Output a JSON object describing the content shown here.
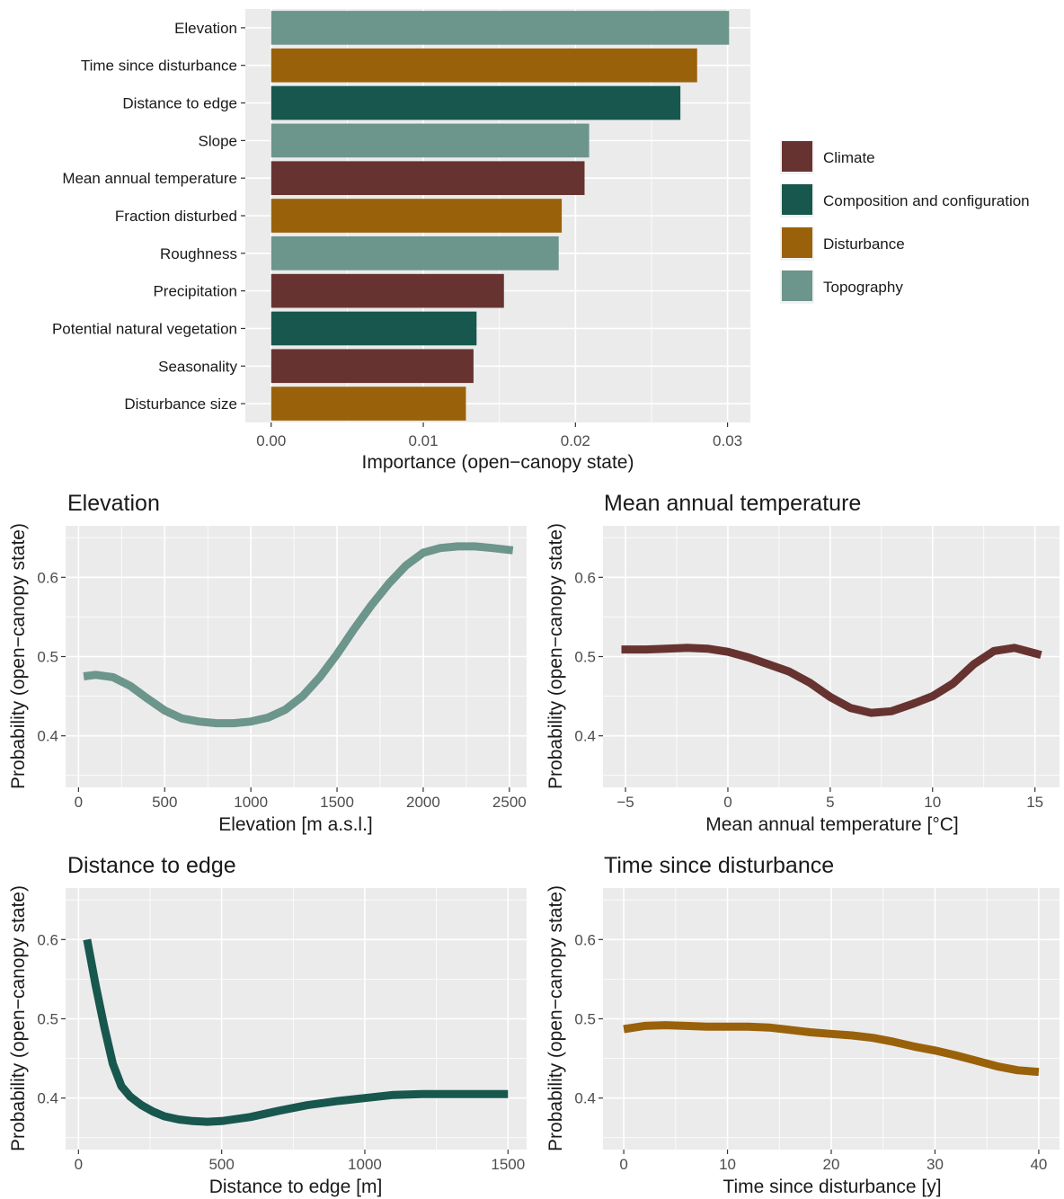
{
  "colors": {
    "Climate": "#673331",
    "Composition and configuration": "#18574d",
    "Disturbance": "#9a610b",
    "Topography": "#6c958b",
    "panel_background": "#ebebeb",
    "grid": "#ffffff"
  },
  "chart_data": [
    {
      "type": "bar",
      "orientation": "horizontal",
      "categories": [
        "Elevation",
        "Time since disturbance",
        "Distance to edge",
        "Slope",
        "Mean annual temperature",
        "Fraction disturbed",
        "Roughness",
        "Precipitation",
        "Potential natural vegetation",
        "Seasonality",
        "Disturbance size"
      ],
      "values": [
        0.0301,
        0.028,
        0.0269,
        0.0209,
        0.0206,
        0.0191,
        0.0189,
        0.0153,
        0.0135,
        0.0133,
        0.0128
      ],
      "groups": [
        "Topography",
        "Disturbance",
        "Composition and configuration",
        "Topography",
        "Climate",
        "Disturbance",
        "Topography",
        "Climate",
        "Composition and configuration",
        "Climate",
        "Disturbance"
      ],
      "xlabel": "Importance (open−canopy state)",
      "ylabel": "",
      "xlim": [
        -0.0017,
        0.0315
      ],
      "xticks": [
        0,
        0.01,
        0.02,
        0.03
      ],
      "xtick_labels": [
        "0.00",
        "0.01",
        "0.02",
        "0.03"
      ],
      "grid": true,
      "legend": {
        "position": "right",
        "entries": [
          "Climate",
          "Composition and configuration",
          "Disturbance",
          "Topography"
        ]
      }
    },
    {
      "type": "line",
      "title": "Elevation",
      "group": "Topography",
      "xlabel": "Elevation [m a.s.l.]",
      "ylabel": "Probability (open−canopy state)",
      "xlim": [
        -75,
        2600
      ],
      "ylim": [
        0.335,
        0.665
      ],
      "xticks": [
        0,
        500,
        1000,
        1500,
        2000,
        2500
      ],
      "xtick_labels": [
        "0",
        "500",
        "1000",
        "1500",
        "2000",
        "2500"
      ],
      "yticks": [
        0.4,
        0.5,
        0.6
      ],
      "ytick_labels": [
        "0.4",
        "0.5",
        "0.6"
      ],
      "grid": true,
      "x": [
        30,
        100,
        200,
        300,
        400,
        500,
        600,
        700,
        800,
        900,
        1000,
        1100,
        1200,
        1300,
        1400,
        1500,
        1600,
        1700,
        1800,
        1900,
        2000,
        2100,
        2200,
        2300,
        2400,
        2520
      ],
      "y": [
        0.475,
        0.477,
        0.474,
        0.463,
        0.447,
        0.432,
        0.422,
        0.418,
        0.416,
        0.416,
        0.418,
        0.423,
        0.433,
        0.45,
        0.474,
        0.503,
        0.535,
        0.565,
        0.592,
        0.615,
        0.631,
        0.637,
        0.639,
        0.639,
        0.637,
        0.634
      ]
    },
    {
      "type": "line",
      "title": "Mean annual temperature",
      "group": "Climate",
      "xlabel": "Mean annual temperature [°C]",
      "ylabel": "Probability (open−canopy state)",
      "xlim": [
        -6.1,
        16.2
      ],
      "ylim": [
        0.335,
        0.665
      ],
      "xticks": [
        -5,
        0,
        5,
        10,
        15
      ],
      "xtick_labels": [
        "−5",
        "0",
        "5",
        "10",
        "15"
      ],
      "yticks": [
        0.4,
        0.5,
        0.6
      ],
      "ytick_labels": [
        "0.4",
        "0.5",
        "0.6"
      ],
      "grid": true,
      "x": [
        -5.2,
        -4,
        -3,
        -2,
        -1,
        0,
        1,
        2,
        3,
        4,
        5,
        6,
        7,
        8,
        9,
        10,
        11,
        12,
        13,
        14,
        15.3
      ],
      "y": [
        0.509,
        0.509,
        0.51,
        0.511,
        0.51,
        0.506,
        0.499,
        0.49,
        0.481,
        0.467,
        0.449,
        0.435,
        0.429,
        0.431,
        0.44,
        0.45,
        0.466,
        0.49,
        0.507,
        0.511,
        0.502
      ]
    },
    {
      "type": "line",
      "title": "Distance to edge",
      "group": "Composition and configuration",
      "xlabel": "Distance to edge [m]",
      "ylabel": "Probability (open−canopy state)",
      "xlim": [
        -45,
        1565
      ],
      "ylim": [
        0.335,
        0.665
      ],
      "xticks": [
        0,
        500,
        1000,
        1500
      ],
      "xtick_labels": [
        "0",
        "500",
        "1000",
        "1500"
      ],
      "yticks": [
        0.4,
        0.5,
        0.6
      ],
      "ytick_labels": [
        "0.4",
        "0.5",
        "0.6"
      ],
      "grid": true,
      "x": [
        30,
        60,
        90,
        120,
        150,
        180,
        220,
        260,
        300,
        350,
        400,
        450,
        500,
        600,
        700,
        800,
        900,
        1000,
        1100,
        1200,
        1300,
        1400,
        1500
      ],
      "y": [
        0.6,
        0.542,
        0.49,
        0.443,
        0.415,
        0.402,
        0.391,
        0.383,
        0.377,
        0.373,
        0.371,
        0.37,
        0.371,
        0.376,
        0.384,
        0.391,
        0.396,
        0.4,
        0.404,
        0.405,
        0.405,
        0.405,
        0.405
      ]
    },
    {
      "type": "line",
      "title": "Time since disturbance",
      "group": "Disturbance",
      "xlabel": "Time since disturbance [y]",
      "ylabel": "Probability (open−canopy state)",
      "xlim": [
        -2,
        42
      ],
      "ylim": [
        0.335,
        0.665
      ],
      "xticks": [
        0,
        10,
        20,
        30,
        40
      ],
      "xtick_labels": [
        "0",
        "10",
        "20",
        "30",
        "40"
      ],
      "yticks": [
        0.4,
        0.5,
        0.6
      ],
      "ytick_labels": [
        "0.4",
        "0.5",
        "0.6"
      ],
      "grid": true,
      "x": [
        0,
        2,
        4,
        6,
        8,
        10,
        12,
        14,
        16,
        18,
        20,
        22,
        24,
        26,
        28,
        30,
        32,
        34,
        36,
        38,
        40
      ],
      "y": [
        0.487,
        0.491,
        0.492,
        0.491,
        0.49,
        0.49,
        0.49,
        0.489,
        0.486,
        0.483,
        0.481,
        0.479,
        0.476,
        0.471,
        0.465,
        0.46,
        0.454,
        0.447,
        0.44,
        0.435,
        0.433
      ]
    }
  ]
}
